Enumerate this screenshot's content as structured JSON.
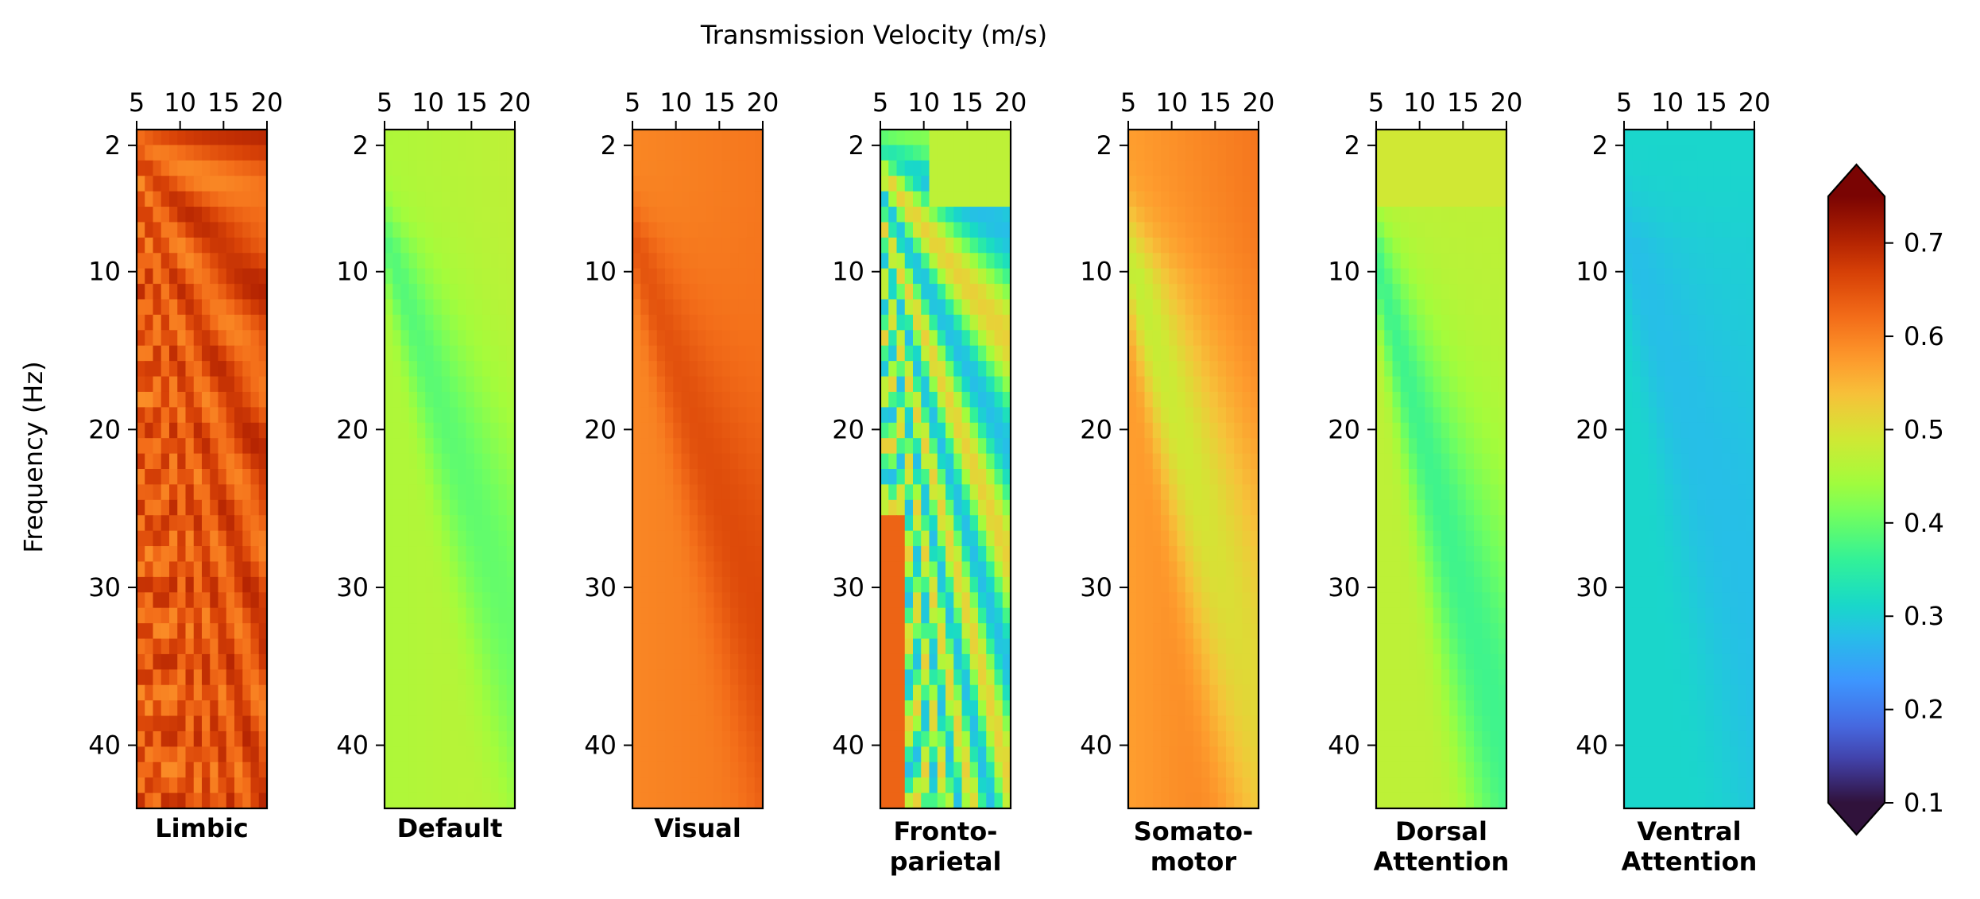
{
  "chart_data": {
    "type": "heatmap",
    "top_label": "Transmission Velocity (m/s)",
    "ylabel": "Frequency (Hz)",
    "x_ticks": [
      "5",
      "10",
      "15",
      "20"
    ],
    "y_ticks": [
      "2",
      "10",
      "20",
      "30",
      "40"
    ],
    "x_range": [
      5,
      20
    ],
    "y_range": [
      1,
      44
    ],
    "grid": false,
    "colormap": "turbo",
    "colorbar": {
      "range": [
        0.1,
        0.75
      ],
      "ticks": [
        "0.1",
        "0.2",
        "0.3",
        "0.4",
        "0.5",
        "0.6",
        "0.7"
      ],
      "extend": "both"
    },
    "panels": [
      {
        "name_lines": [
          "Limbic"
        ],
        "base": 0.65,
        "amp": 0.07,
        "shape": "limbic"
      },
      {
        "name_lines": [
          "Default"
        ],
        "base": 0.45,
        "amp": 0.07,
        "shape": "single"
      },
      {
        "name_lines": [
          "Visual"
        ],
        "base": 0.59,
        "amp": 0.05,
        "shape": "single"
      },
      {
        "name_lines": [
          "Fronto-",
          "parietal"
        ],
        "base": 0.4,
        "amp": 0.12,
        "shape": "fronto"
      },
      {
        "name_lines": [
          "Somato-",
          "motor"
        ],
        "base": 0.56,
        "amp": 0.1,
        "shape": "somato"
      },
      {
        "name_lines": [
          "Dorsal",
          "Attention"
        ],
        "base": 0.42,
        "amp": 0.1,
        "shape": "dorsal"
      },
      {
        "name_lines": [
          "Ventral",
          "Attention"
        ],
        "base": 0.31,
        "amp": 0.03,
        "shape": "ventral"
      }
    ]
  }
}
